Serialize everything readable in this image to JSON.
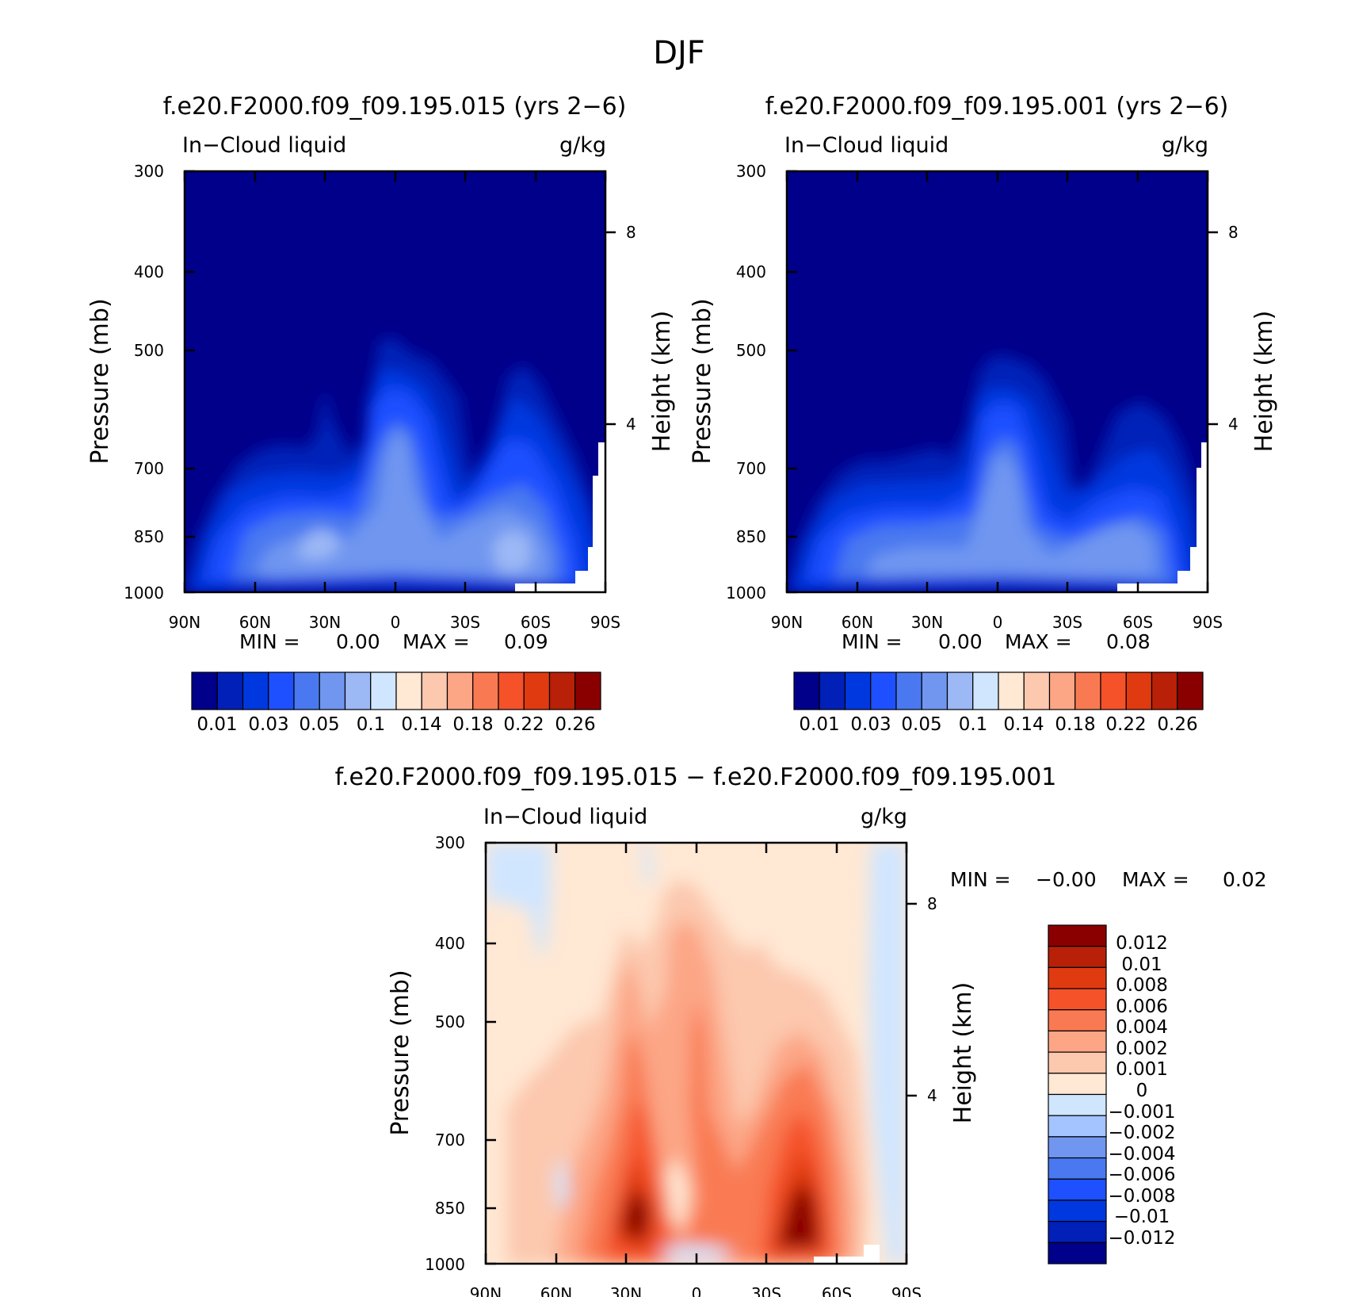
{
  "page_title": "DJF",
  "common": {
    "variable": "In−Cloud liquid",
    "units": "g/kg",
    "ylabel_left": "Pressure (mb)",
    "ylabel_right": "Height (km)",
    "x_ticks": [
      "90N",
      "60N",
      "30N",
      "0",
      "30S",
      "60S",
      "90S"
    ],
    "p_ticks": [
      "300",
      "400",
      "500",
      "700",
      "850",
      "1000"
    ],
    "h_ticks": [
      "8",
      "4"
    ],
    "min_label": "MIN =",
    "max_label": "MAX ="
  },
  "panels": {
    "a": {
      "title": "f.e20.F2000.f09_f09.195.015 (yrs 2−6)",
      "min": "0.00",
      "max": "0.09"
    },
    "b": {
      "title": "f.e20.F2000.f09_f09.195.001 (yrs 2−6)",
      "min": "0.00",
      "max": "0.08"
    },
    "c": {
      "title": "f.e20.F2000.f09_f09.195.015 − f.e20.F2000.f09_f09.195.001",
      "min": "−0.00",
      "max": "0.02"
    }
  },
  "colorbar_main": {
    "labels": [
      "0.01",
      "0.03",
      "0.05",
      "0.1",
      "0.14",
      "0.18",
      "0.22",
      "0.26"
    ],
    "colors": [
      "#00008a",
      "#0020b8",
      "#0038e0",
      "#1e50ff",
      "#4a78f0",
      "#7096f0",
      "#9cb8f5",
      "#d0e6ff",
      "#ffe8d4",
      "#fcc8ae",
      "#fca686",
      "#f97a52",
      "#f5522a",
      "#e03a10",
      "#b82008",
      "#8a0000"
    ]
  },
  "colorbar_diff": {
    "labels": [
      "0.012",
      "0.01",
      "0.008",
      "0.006",
      "0.004",
      "0.002",
      "0.001",
      "0",
      "−0.001",
      "−0.002",
      "−0.004",
      "−0.006",
      "−0.008",
      "−0.01",
      "−0.012"
    ],
    "colors": [
      "#8a0000",
      "#b82008",
      "#e03a10",
      "#f5522a",
      "#f97a52",
      "#fca686",
      "#fcc8ae",
      "#ffe8d4",
      "#d0e6ff",
      "#a4c4ff",
      "#7096f0",
      "#4a78f0",
      "#1e50ff",
      "#0038e0",
      "#0020b8",
      "#00008a"
    ]
  },
  "chart_data": [
    {
      "type": "heatmap",
      "title": "f.e20.F2000.f09_f09.195.015 (yrs 2−6)",
      "subtitle_left": "In−Cloud liquid",
      "subtitle_right": "g/kg",
      "xlabel": "",
      "ylabel": "Pressure (mb)",
      "ylabel_right": "Height (km)",
      "x_range": [
        90,
        -90
      ],
      "y_range": [
        300,
        1000
      ],
      "min": 0.0,
      "max": 0.09,
      "levels": [
        0.01,
        0.02,
        0.03,
        0.04,
        0.05,
        0.07,
        0.1,
        0.12,
        0.14,
        0.16,
        0.18,
        0.2,
        0.22,
        0.24,
        0.26
      ]
    },
    {
      "type": "heatmap",
      "title": "f.e20.F2000.f09_f09.195.001 (yrs 2−6)",
      "subtitle_left": "In−Cloud liquid",
      "subtitle_right": "g/kg",
      "ylabel": "Pressure (mb)",
      "ylabel_right": "Height (km)",
      "x_range": [
        90,
        -90
      ],
      "y_range": [
        300,
        1000
      ],
      "min": 0.0,
      "max": 0.08,
      "levels": [
        0.01,
        0.02,
        0.03,
        0.04,
        0.05,
        0.07,
        0.1,
        0.12,
        0.14,
        0.16,
        0.18,
        0.2,
        0.22,
        0.24,
        0.26
      ]
    },
    {
      "type": "heatmap",
      "title": "f.e20.F2000.f09_f09.195.015 − f.e20.F2000.f09_f09.195.001",
      "subtitle_left": "In−Cloud liquid",
      "subtitle_right": "g/kg",
      "ylabel": "Pressure (mb)",
      "ylabel_right": "Height (km)",
      "x_range": [
        90,
        -90
      ],
      "y_range": [
        300,
        1000
      ],
      "min": -0.0,
      "max": 0.02,
      "levels": [
        -0.012,
        -0.01,
        -0.008,
        -0.006,
        -0.004,
        -0.002,
        -0.001,
        0,
        0.001,
        0.002,
        0.004,
        0.006,
        0.008,
        0.01,
        0.012
      ]
    }
  ]
}
